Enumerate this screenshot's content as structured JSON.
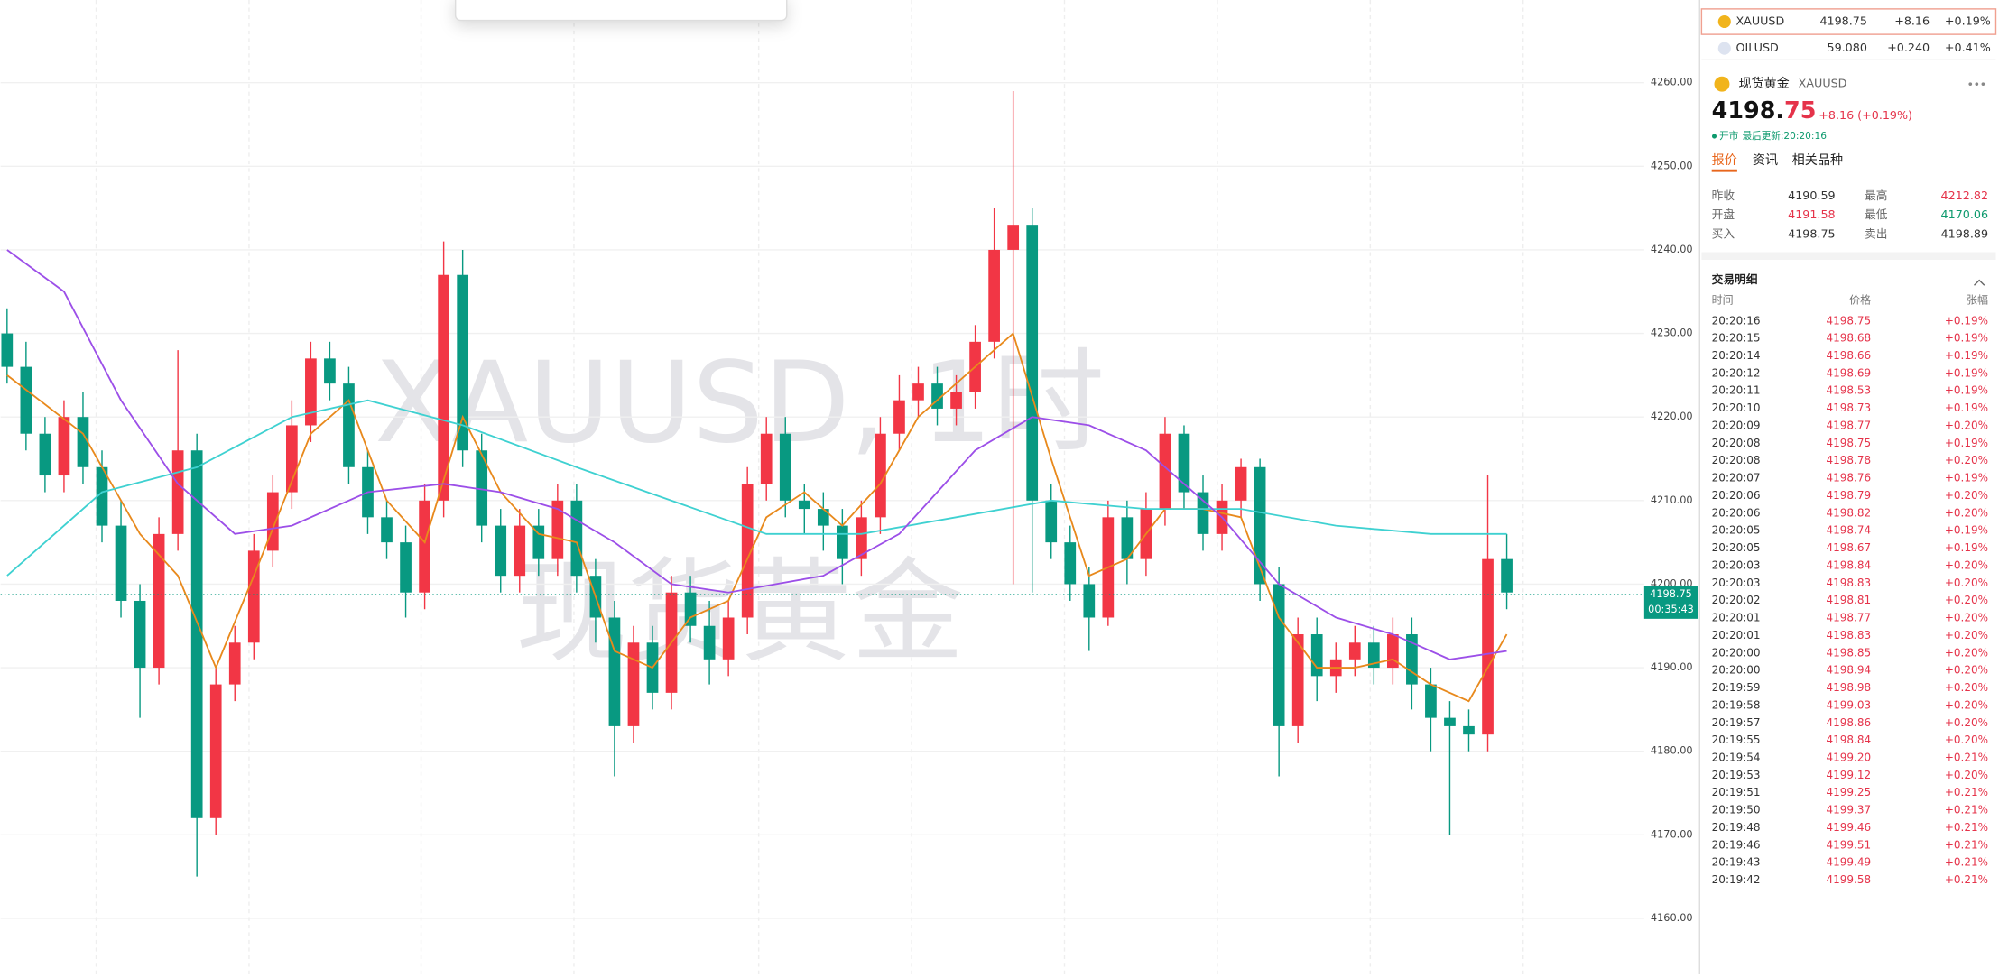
{
  "chart": {
    "type": "candlestick",
    "watermark_symbol": "XAUUSD, 1时",
    "watermark_name": "现货黄金",
    "ylim": [
      4153.3,
      4269.9
    ],
    "xlim": [
      -0.34,
      86.24
    ],
    "yticks": [
      {
        "value": 4160,
        "label": "4160.00"
      },
      {
        "value": 4170,
        "label": "4170.00"
      },
      {
        "value": 4180,
        "label": "4180.00"
      },
      {
        "value": 4190,
        "label": "4190.00"
      },
      {
        "value": 4200,
        "label": "4200.00"
      },
      {
        "value": 4210,
        "label": "4210.00"
      },
      {
        "value": 4220,
        "label": "4220.00"
      },
      {
        "value": 4230,
        "label": "4230.00"
      },
      {
        "value": 4240,
        "label": "4240.00"
      },
      {
        "value": 4250,
        "label": "4250.00"
      },
      {
        "value": 4260,
        "label": "4260.00"
      }
    ],
    "up_color": "#f23645",
    "down_color": "#089981",
    "open": [
      4230,
      4226,
      4218,
      4213,
      4220,
      4214,
      4207,
      4198,
      4190,
      4206,
      4216,
      4172,
      4188,
      4193,
      4204,
      4211,
      4219,
      4227,
      4224,
      4214,
      4208,
      4205,
      4199,
      4210,
      4237,
      4216,
      4207,
      4201,
      4207,
      4203,
      4210,
      4201,
      4196,
      4183,
      4193,
      4187,
      4199,
      4195,
      4191,
      4196,
      4212,
      4218,
      4210,
      4209,
      4207,
      4203,
      4208,
      4218,
      4222,
      4224,
      4221,
      4223,
      4229,
      4240,
      4243,
      4210,
      4205,
      4200,
      4196,
      4208,
      4203,
      4209,
      4218,
      4211,
      4206,
      4210,
      4214,
      4200,
      4183,
      4194,
      4189,
      4191,
      4193,
      4190,
      4194,
      4188,
      4184,
      4183,
      4182,
      4203
    ],
    "high": [
      4233,
      4229,
      4220,
      4222,
      4223,
      4216,
      4210,
      4200,
      4208,
      4228,
      4218,
      4190,
      4195,
      4206,
      4213,
      4222,
      4229,
      4229,
      4226,
      4216,
      4210,
      4207,
      4212,
      4241,
      4240,
      4218,
      4209,
      4209,
      4209,
      4212,
      4212,
      4203,
      4198,
      4195,
      4195,
      4201,
      4201,
      4198,
      4198,
      4214,
      4220,
      4220,
      4212,
      4211,
      4209,
      4210,
      4220,
      4225,
      4226,
      4226,
      4225,
      4231,
      4245,
      4259,
      4245,
      4212,
      4207,
      4202,
      4210,
      4210,
      4211,
      4220,
      4219,
      4213,
      4212,
      4215,
      4215,
      4202,
      4196,
      4196,
      4193,
      4195,
      4195,
      4196,
      4196,
      4190,
      4186,
      4185,
      4213,
      4206
    ],
    "low": [
      4224,
      4216,
      4211,
      4211,
      4212,
      4205,
      4196,
      4184,
      4188,
      4204,
      4165,
      4170,
      4186,
      4191,
      4202,
      4209,
      4217,
      4222,
      4212,
      4206,
      4203,
      4196,
      4197,
      4208,
      4214,
      4205,
      4199,
      4199,
      4201,
      4201,
      4199,
      4193,
      4177,
      4181,
      4185,
      4185,
      4193,
      4188,
      4189,
      4194,
      4210,
      4208,
      4206,
      4204,
      4200,
      4201,
      4206,
      4216,
      4220,
      4219,
      4219,
      4221,
      4227,
      4200,
      4199,
      4203,
      4198,
      4192,
      4195,
      4200,
      4201,
      4207,
      4209,
      4204,
      4204,
      4208,
      4198,
      4177,
      4181,
      4186,
      4187,
      4189,
      4188,
      4188,
      4185,
      4180,
      4170,
      4180,
      4180,
      4197
    ],
    "close": [
      4226,
      4218,
      4213,
      4220,
      4214,
      4207,
      4198,
      4190,
      4206,
      4216,
      4172,
      4188,
      4193,
      4204,
      4211,
      4219,
      4227,
      4224,
      4214,
      4208,
      4205,
      4199,
      4210,
      4237,
      4216,
      4207,
      4201,
      4207,
      4203,
      4210,
      4201,
      4196,
      4183,
      4193,
      4187,
      4199,
      4195,
      4191,
      4196,
      4212,
      4218,
      4210,
      4209,
      4207,
      4203,
      4208,
      4218,
      4222,
      4224,
      4221,
      4223,
      4229,
      4240,
      4243,
      4210,
      4205,
      4200,
      4196,
      4208,
      4203,
      4209,
      4218,
      4211,
      4206,
      4210,
      4214,
      4200,
      4183,
      4194,
      4189,
      4191,
      4193,
      4190,
      4194,
      4188,
      4184,
      4183,
      4182,
      4203,
      4199
    ],
    "ma_lines": [
      {
        "color": "#e8891c",
        "x": [
          0,
          4,
          7,
          9,
          11,
          13,
          16,
          18,
          20,
          22,
          24,
          26,
          28,
          30,
          32,
          34,
          36,
          38,
          40,
          42,
          44,
          46,
          48,
          51,
          53,
          55,
          57,
          59,
          61,
          63,
          65,
          67,
          69,
          71,
          73,
          75,
          77,
          79
        ],
        "values": [
          4225,
          4218,
          4206,
          4201,
          4190,
          4201,
          4218,
          4222,
          4210,
          4205,
          4220,
          4211,
          4206,
          4205,
          4192,
          4190,
          4196,
          4198,
          4208,
          4211,
          4207,
          4212,
          4220,
          4226,
          4230,
          4215,
          4201,
          4203,
          4209,
          4209,
          4208,
          4196,
          4190,
          4190,
          4191,
          4188,
          4186,
          4194
        ]
      },
      {
        "color": "#3fd1d1",
        "x": [
          0,
          5,
          10,
          15,
          19,
          24,
          30,
          35,
          40,
          45,
          50,
          55,
          60,
          65,
          70,
          75,
          79
        ],
        "values": [
          4201,
          4211,
          4214,
          4220,
          4222,
          4219,
          4214,
          4210,
          4206,
          4206,
          4208,
          4210,
          4209,
          4209,
          4207,
          4206,
          4206
        ]
      },
      {
        "color": "#9c4fe8",
        "x": [
          0,
          3,
          6,
          9,
          12,
          15,
          19,
          23,
          26,
          29,
          32,
          35,
          38,
          43,
          47,
          51,
          54,
          57,
          60,
          64,
          67,
          70,
          73,
          76,
          79
        ],
        "values": [
          4240,
          4235,
          4222,
          4212,
          4206,
          4207,
          4211,
          4212,
          4211,
          4209,
          4205,
          4200,
          4199,
          4201,
          4206,
          4216,
          4220,
          4219,
          4216,
          4208,
          4200,
          4196,
          4194,
          4191,
          4192
        ]
      }
    ],
    "last_price": 4198.75,
    "countdown": "00:35:43"
  },
  "watchlist": [
    {
      "symbol": "XAUUSD",
      "price": "4198.75",
      "change": "+8.16",
      "change_pct": "+0.19%"
    },
    {
      "symbol": "OILUSD",
      "price": "59.080",
      "change": "+0.240",
      "change_pct": "+0.41%"
    }
  ],
  "quote": {
    "name": "现货黄金",
    "symbol": "XAUUSD",
    "price_int": "4198.",
    "price_dec": "75",
    "change": "+8.16 (+0.19%)",
    "status": "开市",
    "updated": "最后更新:20:20:16",
    "tabs": [
      "报价",
      "资讯",
      "相关品种"
    ],
    "stats": [
      [
        "昨收",
        "4190.59",
        "最高",
        "4212.82"
      ],
      [
        "开盘",
        "4191.58",
        "最低",
        "4170.06"
      ],
      [
        "买入",
        "4198.75",
        "卖出",
        "4198.89"
      ]
    ]
  },
  "trades": {
    "title": "交易明细",
    "headers": [
      "时间",
      "价格",
      "张幅"
    ],
    "rows": [
      [
        "20:20:16",
        "4198.75",
        "+0.19%"
      ],
      [
        "20:20:15",
        "4198.68",
        "+0.19%"
      ],
      [
        "20:20:14",
        "4198.66",
        "+0.19%"
      ],
      [
        "20:20:12",
        "4198.69",
        "+0.19%"
      ],
      [
        "20:20:11",
        "4198.53",
        "+0.19%"
      ],
      [
        "20:20:10",
        "4198.73",
        "+0.19%"
      ],
      [
        "20:20:09",
        "4198.77",
        "+0.20%"
      ],
      [
        "20:20:08",
        "4198.75",
        "+0.19%"
      ],
      [
        "20:20:08",
        "4198.78",
        "+0.20%"
      ],
      [
        "20:20:07",
        "4198.76",
        "+0.19%"
      ],
      [
        "20:20:06",
        "4198.79",
        "+0.20%"
      ],
      [
        "20:20:06",
        "4198.82",
        "+0.20%"
      ],
      [
        "20:20:05",
        "4198.74",
        "+0.19%"
      ],
      [
        "20:20:05",
        "4198.67",
        "+0.19%"
      ],
      [
        "20:20:03",
        "4198.84",
        "+0.20%"
      ],
      [
        "20:20:03",
        "4198.83",
        "+0.20%"
      ],
      [
        "20:20:02",
        "4198.81",
        "+0.20%"
      ],
      [
        "20:20:01",
        "4198.77",
        "+0.20%"
      ],
      [
        "20:20:01",
        "4198.83",
        "+0.20%"
      ],
      [
        "20:20:00",
        "4198.85",
        "+0.20%"
      ],
      [
        "20:20:00",
        "4198.94",
        "+0.20%"
      ],
      [
        "20:19:59",
        "4198.98",
        "+0.20%"
      ],
      [
        "20:19:58",
        "4199.03",
        "+0.20%"
      ],
      [
        "20:19:57",
        "4198.86",
        "+0.20%"
      ],
      [
        "20:19:55",
        "4198.84",
        "+0.20%"
      ],
      [
        "20:19:54",
        "4199.20",
        "+0.21%"
      ],
      [
        "20:19:53",
        "4199.12",
        "+0.20%"
      ],
      [
        "20:19:51",
        "4199.25",
        "+0.21%"
      ],
      [
        "20:19:50",
        "4199.37",
        "+0.21%"
      ],
      [
        "20:19:48",
        "4199.46",
        "+0.21%"
      ],
      [
        "20:19:46",
        "4199.51",
        "+0.21%"
      ],
      [
        "20:19:43",
        "4199.49",
        "+0.21%"
      ],
      [
        "20:19:42",
        "4199.58",
        "+0.21%"
      ]
    ]
  }
}
